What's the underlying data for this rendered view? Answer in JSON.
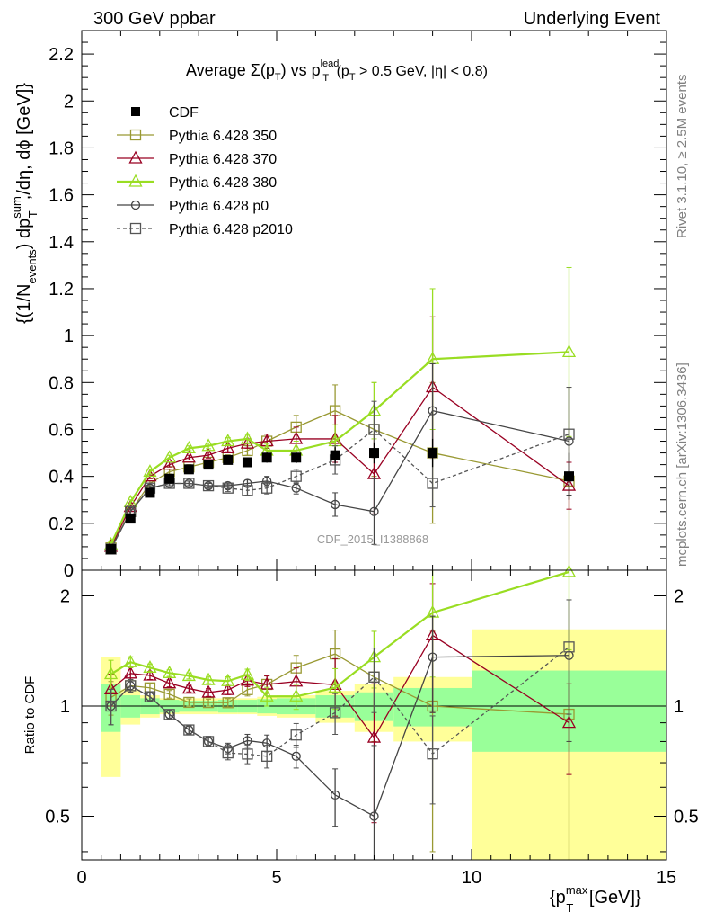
{
  "header": {
    "left": "300 GeV ppbar",
    "right": "Underlying Event"
  },
  "side": {
    "rivet": "Rivet 3.1.10, ≥ 2.5M events",
    "mcplots": "mcplots.cern.ch [arXiv:1306.3436]"
  },
  "chart_data": {
    "type": "line",
    "title": {
      "t1": "Average ",
      "sigma": "Σ(p",
      "sub_t": "T",
      "t2": ") vs p",
      "sup_lead": "lead",
      "t3": " (p",
      "t4": " > 0.5 GeV, |η| < 0.8)"
    },
    "watermark": "CDF_2015_I1388868",
    "ylabel": {
      "p1": "{(1/N",
      "sub_events": "events",
      "p2": ") dp",
      "sup_sum": "sum",
      "sub_T": "T",
      "p3": ",/dη, dϕ [GeV]}"
    },
    "ratio_ylabel": "Ratio to CDF",
    "xlabel": {
      "p1": "{p",
      "sup_max": "max",
      "sub_T": "T",
      "p2": " [GeV]}"
    },
    "xlim": [
      0,
      15
    ],
    "ylim": [
      0,
      2.3
    ],
    "ratio_ylim": [
      0.38,
      2.35
    ],
    "ratio_scale": "log",
    "x_ticks": [
      "0",
      "5",
      "10",
      "15"
    ],
    "y_ticks": [
      "0",
      "0.2",
      "0.4",
      "0.6",
      "0.8",
      "1",
      "1.2",
      "1.4",
      "1.6",
      "1.8",
      "2",
      "2.2"
    ],
    "ratio_ticks": [
      "0.5",
      "1",
      "2"
    ],
    "legend_position": "top-left",
    "data": {
      "name": "CDF",
      "x": [
        0.75,
        1.25,
        1.75,
        2.25,
        2.75,
        3.25,
        3.75,
        4.25,
        4.75,
        5.5,
        6.5,
        7.5,
        9.0,
        12.5
      ],
      "y": [
        0.09,
        0.22,
        0.33,
        0.39,
        0.43,
        0.45,
        0.47,
        0.46,
        0.48,
        0.48,
        0.49,
        0.5,
        0.5,
        0.4
      ],
      "band_edges": [
        0.5,
        1.0,
        1.5,
        2.0,
        2.5,
        3.0,
        3.5,
        4.0,
        4.5,
        5.0,
        6.0,
        7.0,
        8.0,
        10.0,
        15.0
      ],
      "stat_rel": [
        0.15,
        0.07,
        0.05,
        0.04,
        0.035,
        0.035,
        0.04,
        0.04,
        0.045,
        0.05,
        0.07,
        0.09,
        0.12,
        0.25
      ],
      "total_rel": [
        0.36,
        0.11,
        0.07,
        0.05,
        0.05,
        0.05,
        0.05,
        0.05,
        0.06,
        0.07,
        0.1,
        0.15,
        0.2,
        0.62
      ]
    },
    "series": [
      {
        "name": "Pythia 6.428 350",
        "color": "#999933",
        "marker": "square-open",
        "dash": "",
        "x": [
          0.75,
          1.25,
          1.75,
          2.25,
          2.75,
          3.25,
          3.75,
          4.25,
          4.75,
          5.5,
          6.5,
          7.5,
          9.0,
          12.5
        ],
        "y": [
          0.095,
          0.25,
          0.37,
          0.42,
          0.44,
          0.46,
          0.48,
          0.51,
          0.55,
          0.61,
          0.68,
          0.6,
          0.5,
          0.38
        ],
        "err": [
          0.01,
          0.01,
          0.01,
          0.01,
          0.01,
          0.01,
          0.012,
          0.02,
          0.03,
          0.05,
          0.11,
          0.2,
          0.3,
          0.4
        ]
      },
      {
        "name": "Pythia 6.428 370",
        "color": "#990022",
        "marker": "triangle-open",
        "dash": "",
        "x": [
          0.75,
          1.25,
          1.75,
          2.25,
          2.75,
          3.25,
          3.75,
          4.25,
          4.75,
          5.5,
          6.5,
          7.5,
          9.0,
          12.5
        ],
        "y": [
          0.1,
          0.27,
          0.4,
          0.45,
          0.48,
          0.49,
          0.52,
          0.54,
          0.55,
          0.56,
          0.56,
          0.41,
          0.78,
          0.36
        ],
        "err": [
          0.01,
          0.01,
          0.01,
          0.01,
          0.01,
          0.012,
          0.015,
          0.02,
          0.03,
          0.05,
          0.1,
          0.17,
          0.3,
          0.1
        ]
      },
      {
        "name": "Pythia 6.428 380",
        "color": "#99dd22",
        "marker": "triangle-open",
        "dash": "",
        "x": [
          0.75,
          1.25,
          1.75,
          2.25,
          2.75,
          3.25,
          3.75,
          4.25,
          4.75,
          5.5,
          6.5,
          7.5,
          9.0,
          12.5
        ],
        "y": [
          0.11,
          0.29,
          0.42,
          0.48,
          0.52,
          0.53,
          0.55,
          0.56,
          0.51,
          0.51,
          0.55,
          0.68,
          0.9,
          0.93
        ],
        "err": [
          0.01,
          0.01,
          0.01,
          0.01,
          0.01,
          0.012,
          0.015,
          0.02,
          0.03,
          0.04,
          0.07,
          0.12,
          0.3,
          0.36
        ]
      },
      {
        "name": "Pythia 6.428 p0",
        "color": "#444444",
        "marker": "circle-open",
        "dash": "",
        "x": [
          0.75,
          1.25,
          1.75,
          2.25,
          2.75,
          3.25,
          3.75,
          4.25,
          4.75,
          5.5,
          6.5,
          7.5,
          9.0,
          12.5
        ],
        "y": [
          0.09,
          0.25,
          0.35,
          0.37,
          0.37,
          0.36,
          0.36,
          0.37,
          0.38,
          0.35,
          0.28,
          0.25,
          0.68,
          0.55
        ],
        "err": [
          0.01,
          0.01,
          0.01,
          0.01,
          0.01,
          0.01,
          0.012,
          0.015,
          0.02,
          0.025,
          0.05,
          0.14,
          0.2,
          0.23
        ]
      },
      {
        "name": "Pythia 6.428 p2010",
        "color": "#555555",
        "marker": "square-open",
        "dash": "4,3",
        "x": [
          0.75,
          1.25,
          1.75,
          2.25,
          2.75,
          3.25,
          3.75,
          4.25,
          4.75,
          5.5,
          6.5,
          7.5,
          9.0,
          12.5
        ],
        "y": [
          0.09,
          0.25,
          0.35,
          0.37,
          0.37,
          0.36,
          0.35,
          0.34,
          0.35,
          0.4,
          0.47,
          0.6,
          0.37,
          0.58
        ],
        "err": [
          0.01,
          0.01,
          0.01,
          0.01,
          0.01,
          0.012,
          0.015,
          0.02,
          0.025,
          0.03,
          0.06,
          0.12,
          0.1,
          0.2
        ]
      }
    ]
  }
}
